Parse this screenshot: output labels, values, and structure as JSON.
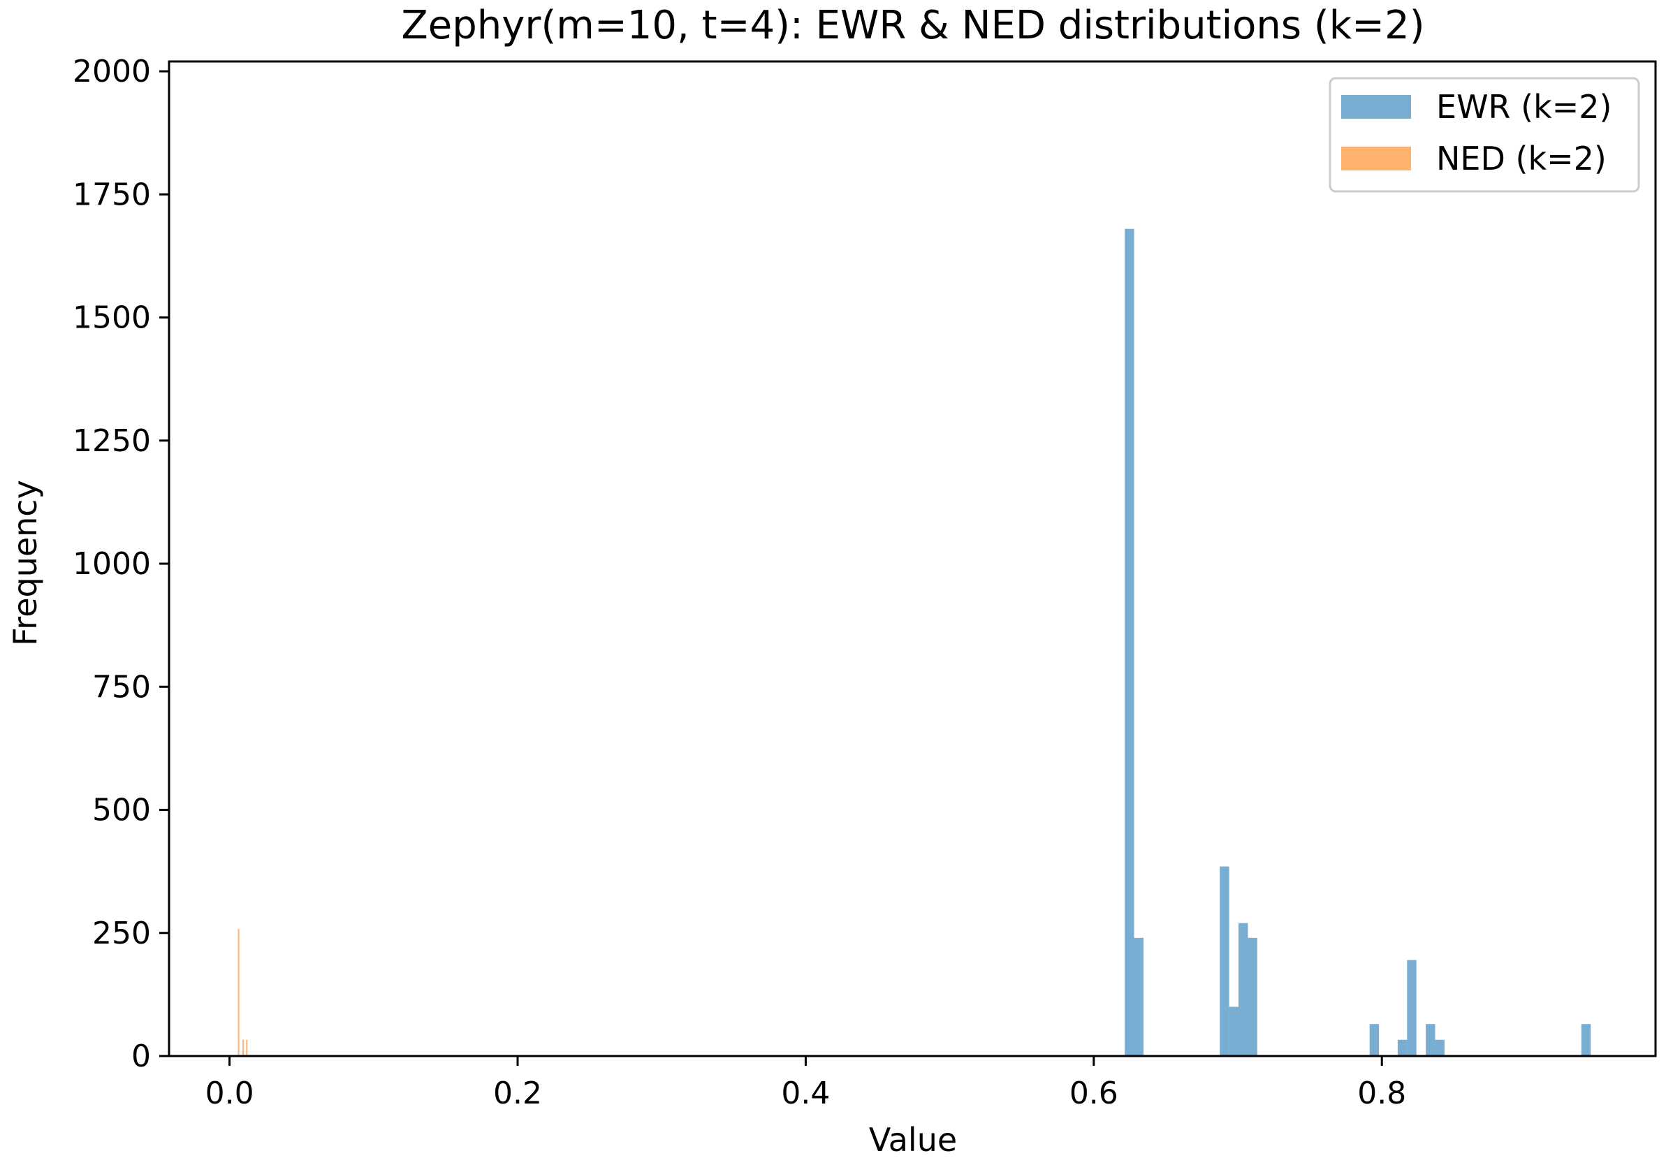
{
  "chart_data": {
    "type": "bar",
    "title": "Zephyr(m=10, t=4): EWR & NED distributions (k=2)",
    "xlabel": "Value",
    "ylabel": "Frequency",
    "xlim": [
      -0.042,
      0.99
    ],
    "ylim": [
      0,
      2020
    ],
    "xticks": [
      0.0,
      0.2,
      0.4,
      0.6,
      0.8
    ],
    "xtick_labels": [
      "0.0",
      "0.2",
      "0.4",
      "0.6",
      "0.8"
    ],
    "yticks": [
      0,
      250,
      500,
      750,
      1000,
      1250,
      1500,
      1750,
      2000
    ],
    "ytick_labels": [
      "0",
      "250",
      "500",
      "750",
      "1000",
      "1250",
      "1500",
      "1750",
      "2000"
    ],
    "grid": false,
    "legend_position": "top-right",
    "series": [
      {
        "name": "EWR (k=2)",
        "color": "#1f77b4",
        "opacity": 0.6,
        "bin_width": 0.0065,
        "bins": [
          {
            "x": 0.6215,
            "count": 1680
          },
          {
            "x": 0.628,
            "count": 240
          },
          {
            "x": 0.6875,
            "count": 385
          },
          {
            "x": 0.694,
            "count": 100
          },
          {
            "x": 0.7005,
            "count": 270
          },
          {
            "x": 0.707,
            "count": 240
          },
          {
            "x": 0.7915,
            "count": 65
          },
          {
            "x": 0.811,
            "count": 33
          },
          {
            "x": 0.8175,
            "count": 195
          },
          {
            "x": 0.8305,
            "count": 65
          },
          {
            "x": 0.837,
            "count": 33
          },
          {
            "x": 0.9385,
            "count": 65
          }
        ]
      },
      {
        "name": "NED (k=2)",
        "color": "#ff7f0e",
        "opacity": 0.6,
        "bin_width": 0.0008,
        "bins": [
          {
            "x": 0.0058,
            "count": 258
          },
          {
            "x": 0.009,
            "count": 33
          },
          {
            "x": 0.0115,
            "count": 33
          }
        ]
      }
    ]
  }
}
